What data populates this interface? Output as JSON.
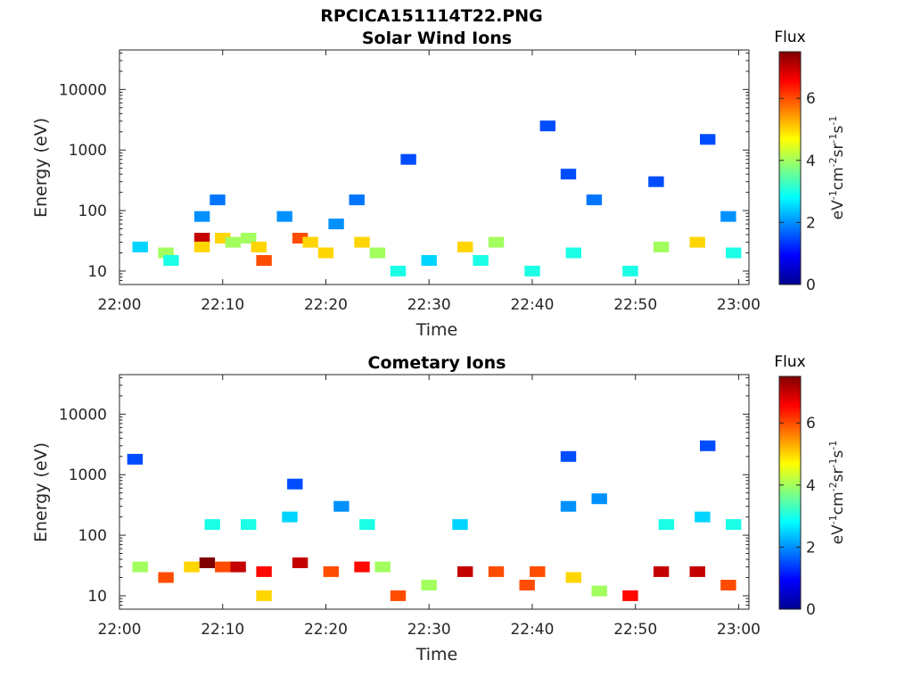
{
  "figure": {
    "main_title": "RPCICA151114T22.PNG"
  },
  "chart_data": [
    {
      "type": "heatmap",
      "title": "Solar Wind Ions",
      "xlabel": "Time",
      "ylabel": "Energy (eV)",
      "x_ticks": [
        "22:00",
        "22:10",
        "22:20",
        "22:30",
        "22:40",
        "22:50",
        "23:00"
      ],
      "xlim_minutes": [
        0,
        61
      ],
      "y_ticks": [
        "10",
        "100",
        "1000",
        "10000"
      ],
      "y_scale": "log",
      "ylim": [
        6,
        45000
      ],
      "colorbar": {
        "title": "Flux",
        "label": "eV-1cm-2sr-1s-1",
        "ticks": [
          "0",
          "2",
          "4",
          "6"
        ],
        "clim": [
          0,
          7.5
        ],
        "colormap": "jet"
      },
      "samples": [
        {
          "t": 2,
          "e": 25,
          "v": 2.5
        },
        {
          "t": 4.5,
          "e": 20,
          "v": 4
        },
        {
          "t": 5,
          "e": 15,
          "v": 3
        },
        {
          "t": 8,
          "e": 35,
          "v": 7
        },
        {
          "t": 8,
          "e": 25,
          "v": 5
        },
        {
          "t": 8,
          "e": 80,
          "v": 2
        },
        {
          "t": 9.5,
          "e": 150,
          "v": 1.8
        },
        {
          "t": 10,
          "e": 35,
          "v": 5
        },
        {
          "t": 11,
          "e": 30,
          "v": 4
        },
        {
          "t": 12.5,
          "e": 35,
          "v": 4
        },
        {
          "t": 13.5,
          "e": 25,
          "v": 5
        },
        {
          "t": 14,
          "e": 15,
          "v": 6
        },
        {
          "t": 16,
          "e": 80,
          "v": 2
        },
        {
          "t": 17.5,
          "e": 35,
          "v": 6
        },
        {
          "t": 18.5,
          "e": 30,
          "v": 5
        },
        {
          "t": 20,
          "e": 20,
          "v": 5
        },
        {
          "t": 21,
          "e": 60,
          "v": 2
        },
        {
          "t": 23,
          "e": 150,
          "v": 1.8
        },
        {
          "t": 23.5,
          "e": 30,
          "v": 5
        },
        {
          "t": 25,
          "e": 20,
          "v": 4
        },
        {
          "t": 28,
          "e": 700,
          "v": 1.5
        },
        {
          "t": 27,
          "e": 10,
          "v": 3
        },
        {
          "t": 30,
          "e": 15,
          "v": 2.5
        },
        {
          "t": 33.5,
          "e": 25,
          "v": 5
        },
        {
          "t": 35,
          "e": 15,
          "v": 3
        },
        {
          "t": 36.5,
          "e": 30,
          "v": 4
        },
        {
          "t": 40,
          "e": 10,
          "v": 3
        },
        {
          "t": 41.5,
          "e": 2500,
          "v": 1.5
        },
        {
          "t": 43.5,
          "e": 400,
          "v": 1.5
        },
        {
          "t": 44,
          "e": 20,
          "v": 3
        },
        {
          "t": 46,
          "e": 150,
          "v": 1.8
        },
        {
          "t": 49.5,
          "e": 10,
          "v": 3
        },
        {
          "t": 52,
          "e": 300,
          "v": 1.5
        },
        {
          "t": 52.5,
          "e": 25,
          "v": 4
        },
        {
          "t": 56,
          "e": 30,
          "v": 5
        },
        {
          "t": 57,
          "e": 1500,
          "v": 1.5
        },
        {
          "t": 59,
          "e": 80,
          "v": 2
        },
        {
          "t": 59.5,
          "e": 20,
          "v": 3
        }
      ]
    },
    {
      "type": "heatmap",
      "title": "Cometary Ions",
      "xlabel": "Time",
      "ylabel": "Energy (eV)",
      "x_ticks": [
        "22:00",
        "22:10",
        "22:20",
        "22:30",
        "22:40",
        "22:50",
        "23:00"
      ],
      "xlim_minutes": [
        0,
        61
      ],
      "y_ticks": [
        "10",
        "100",
        "1000",
        "10000"
      ],
      "y_scale": "log",
      "ylim": [
        6,
        45000
      ],
      "colorbar": {
        "title": "Flux",
        "label": "eV-1cm-2sr-1s-1",
        "ticks": [
          "0",
          "2",
          "4",
          "6"
        ],
        "clim": [
          0,
          7.5
        ],
        "colormap": "jet"
      },
      "samples": [
        {
          "t": 1.5,
          "e": 1800,
          "v": 1.5
        },
        {
          "t": 2,
          "e": 30,
          "v": 4
        },
        {
          "t": 4.5,
          "e": 20,
          "v": 6
        },
        {
          "t": 7,
          "e": 30,
          "v": 5
        },
        {
          "t": 8.5,
          "e": 35,
          "v": 7.5
        },
        {
          "t": 9,
          "e": 150,
          "v": 3
        },
        {
          "t": 10,
          "e": 30,
          "v": 6
        },
        {
          "t": 11.5,
          "e": 30,
          "v": 7
        },
        {
          "t": 12.5,
          "e": 150,
          "v": 3
        },
        {
          "t": 14,
          "e": 25,
          "v": 6.5
        },
        {
          "t": 14,
          "e": 10,
          "v": 5
        },
        {
          "t": 16.5,
          "e": 200,
          "v": 2.5
        },
        {
          "t": 17.5,
          "e": 35,
          "v": 7
        },
        {
          "t": 17,
          "e": 700,
          "v": 1.5
        },
        {
          "t": 20.5,
          "e": 25,
          "v": 6
        },
        {
          "t": 21.5,
          "e": 300,
          "v": 2
        },
        {
          "t": 23.5,
          "e": 30,
          "v": 6.5
        },
        {
          "t": 24,
          "e": 150,
          "v": 3
        },
        {
          "t": 25.5,
          "e": 30,
          "v": 4
        },
        {
          "t": 27,
          "e": 10,
          "v": 6
        },
        {
          "t": 30,
          "e": 15,
          "v": 4
        },
        {
          "t": 33.5,
          "e": 25,
          "v": 7
        },
        {
          "t": 33,
          "e": 150,
          "v": 2.5
        },
        {
          "t": 36.5,
          "e": 25,
          "v": 6
        },
        {
          "t": 39.5,
          "e": 15,
          "v": 6
        },
        {
          "t": 40.5,
          "e": 25,
          "v": 6
        },
        {
          "t": 43.5,
          "e": 2000,
          "v": 1.5
        },
        {
          "t": 43.5,
          "e": 300,
          "v": 2
        },
        {
          "t": 44,
          "e": 20,
          "v": 5
        },
        {
          "t": 46.5,
          "e": 400,
          "v": 2
        },
        {
          "t": 46.5,
          "e": 12,
          "v": 4
        },
        {
          "t": 49.5,
          "e": 10,
          "v": 6.5
        },
        {
          "t": 52.5,
          "e": 25,
          "v": 7
        },
        {
          "t": 53,
          "e": 150,
          "v": 3
        },
        {
          "t": 56,
          "e": 25,
          "v": 7
        },
        {
          "t": 56.5,
          "e": 200,
          "v": 2.5
        },
        {
          "t": 57,
          "e": 3000,
          "v": 1.5
        },
        {
          "t": 59,
          "e": 15,
          "v": 6
        },
        {
          "t": 59.5,
          "e": 150,
          "v": 3
        }
      ]
    }
  ]
}
